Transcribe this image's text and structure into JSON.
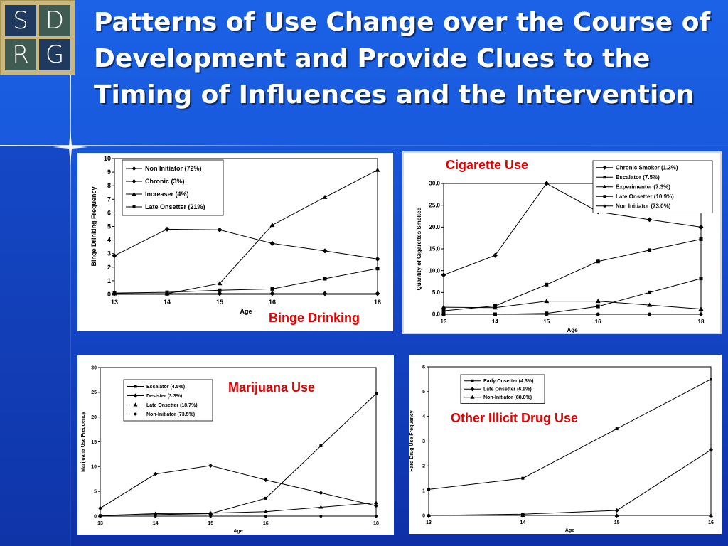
{
  "logo": {
    "letters": [
      "S",
      "D",
      "R",
      "G"
    ]
  },
  "title": "Patterns of Use Change over the Course of Development and Provide Clues to the Timing of Influences and the Intervention",
  "chart_data": [
    {
      "id": "binge",
      "type": "line",
      "panel_label": "Binge Drinking",
      "title": "",
      "xlabel": "Age",
      "ylabel": "Binge Drinking Frequency",
      "x": [
        13,
        14,
        15,
        16,
        17,
        18
      ],
      "xticks": [
        "13",
        "14",
        "15",
        "16",
        "18"
      ],
      "xtick_values": [
        13,
        14,
        15,
        16,
        18
      ],
      "ylim": [
        0,
        10
      ],
      "yticks": [
        "0",
        "1",
        "2",
        "3",
        "4",
        "5",
        "6",
        "7",
        "8",
        "9",
        "10"
      ],
      "legend_position": "top-left",
      "series": [
        {
          "name": "Non Initiator (72%)",
          "marker": "diamond",
          "values": [
            0.05,
            0.05,
            0.05,
            0.05,
            0.05,
            0.05
          ]
        },
        {
          "name": "Chronic (3%)",
          "marker": "diamond",
          "values": [
            2.85,
            4.8,
            4.75,
            3.75,
            3.2,
            2.6
          ]
        },
        {
          "name": "Increaser (4%)",
          "marker": "triangle",
          "values": [
            0.05,
            0.05,
            0.8,
            5.1,
            7.15,
            9.15
          ]
        },
        {
          "name": "Late Onsetter (21%)",
          "marker": "square",
          "values": [
            0.1,
            0.15,
            0.3,
            0.4,
            1.15,
            1.9
          ]
        }
      ]
    },
    {
      "id": "cigarette",
      "type": "line",
      "panel_label": "Cigarette Use",
      "title": "",
      "xlabel": "Age",
      "ylabel": "Quantity of Cigarettes Smoked",
      "x": [
        13,
        14,
        15,
        16,
        17,
        18
      ],
      "xticks": [
        "13",
        "14",
        "15",
        "16",
        "18"
      ],
      "xtick_values": [
        13,
        14,
        15,
        16,
        18
      ],
      "ylim": [
        0,
        30
      ],
      "yticks": [
        "0.0",
        "5.0",
        "10.0",
        "15.0",
        "20.0",
        "25.0",
        "30.0"
      ],
      "legend_position": "top-right",
      "series": [
        {
          "name": "Chronic Smoker (1.3%)",
          "marker": "diamond",
          "values": [
            9.0,
            13.5,
            30.0,
            23.5,
            21.7,
            20.0
          ]
        },
        {
          "name": "Escalator (7.5%)",
          "marker": "square",
          "values": [
            0.8,
            1.9,
            6.8,
            12.1,
            14.7,
            17.2
          ]
        },
        {
          "name": "Experimenter (7.3%)",
          "marker": "triangle",
          "values": [
            1.6,
            1.5,
            3.0,
            3.0,
            2.1,
            1.2
          ]
        },
        {
          "name": "Late Onsetter (10.9%)",
          "marker": "square",
          "values": [
            0.0,
            0.0,
            0.2,
            1.8,
            5.0,
            8.2
          ]
        },
        {
          "name": "Non Initiator (73.0%)",
          "marker": "circle",
          "values": [
            0.0,
            0.0,
            0.0,
            0.0,
            0.0,
            0.0
          ]
        }
      ]
    },
    {
      "id": "marijuana",
      "type": "line",
      "panel_label": "Marijuana Use",
      "title": "",
      "xlabel": "Age",
      "ylabel": "Marijuana Use Frequency",
      "x": [
        13,
        14,
        15,
        16,
        17,
        18
      ],
      "xticks": [
        "13",
        "14",
        "15",
        "16",
        "18"
      ],
      "xtick_values": [
        13,
        14,
        15,
        16,
        18
      ],
      "ylim": [
        0,
        30
      ],
      "yticks": [
        "0",
        "5",
        "10",
        "15",
        "20",
        "25",
        "30"
      ],
      "legend_position": "top-left",
      "series": [
        {
          "name": "Escalator (4.5%)",
          "marker": "square",
          "values": [
            0.1,
            0.3,
            0.5,
            3.6,
            14.2,
            24.7
          ]
        },
        {
          "name": "Desister (3.3%)",
          "marker": "diamond",
          "values": [
            1.6,
            8.5,
            10.2,
            7.3,
            4.7,
            2.1
          ]
        },
        {
          "name": "Late Onsetter (18.7%)",
          "marker": "triangle",
          "values": [
            0.1,
            0.5,
            0.6,
            0.9,
            1.8,
            2.7
          ]
        },
        {
          "name": "Non-Initiator (73.5%)",
          "marker": "circle",
          "values": [
            0.0,
            0.0,
            0.0,
            0.0,
            0.0,
            0.0
          ]
        }
      ]
    },
    {
      "id": "illicit",
      "type": "line",
      "panel_label": "Other Illicit Drug Use",
      "title": "",
      "xlabel": "Age",
      "ylabel": "Hard Drug Use Frequency",
      "x": [
        13,
        14,
        15,
        16
      ],
      "xticks": [
        "13",
        "14",
        "15",
        "16"
      ],
      "xtick_values": [
        13,
        14,
        15,
        16
      ],
      "ylim": [
        0,
        6
      ],
      "yticks": [
        "0",
        "1",
        "2",
        "3",
        "4",
        "5",
        "6"
      ],
      "legend_position": "top-left",
      "series": [
        {
          "name": "Early Onsetter (4.3%)",
          "marker": "square",
          "values": [
            1.05,
            1.5,
            3.5,
            5.5
          ]
        },
        {
          "name": "Late Onsetter (6.9%)",
          "marker": "diamond",
          "values": [
            0.0,
            0.05,
            0.2,
            2.65
          ]
        },
        {
          "name": "Non-Initiator (88.8%)",
          "marker": "triangle",
          "values": [
            0.0,
            0.0,
            0.0,
            0.0
          ]
        }
      ]
    }
  ]
}
